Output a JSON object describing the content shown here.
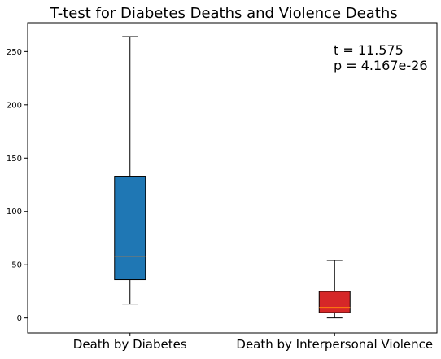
{
  "chart_data": {
    "type": "box",
    "title": "T-test for Diabetes Deaths and Violence Deaths",
    "xlabel": "",
    "ylabel": "",
    "ylim": [
      -14,
      277
    ],
    "yticks": [
      0,
      50,
      100,
      150,
      200,
      250
    ],
    "categories": [
      "Death by Diabetes",
      "Death by Interpersonal Violence"
    ],
    "boxes": [
      {
        "category": "Death by Diabetes",
        "whisker_low": 13,
        "q1": 36,
        "median": 58,
        "q3": 133,
        "whisker_high": 264,
        "color": "#1f77b4"
      },
      {
        "category": "Death by Interpersonal Violence",
        "whisker_low": 0,
        "q1": 5,
        "median": 10,
        "q3": 25,
        "whisker_high": 54,
        "color": "#d62728"
      }
    ],
    "median_color": "#ff7f0e",
    "annotations": [
      "t = 11.575",
      "p = 4.167e-26"
    ],
    "grid": false
  }
}
